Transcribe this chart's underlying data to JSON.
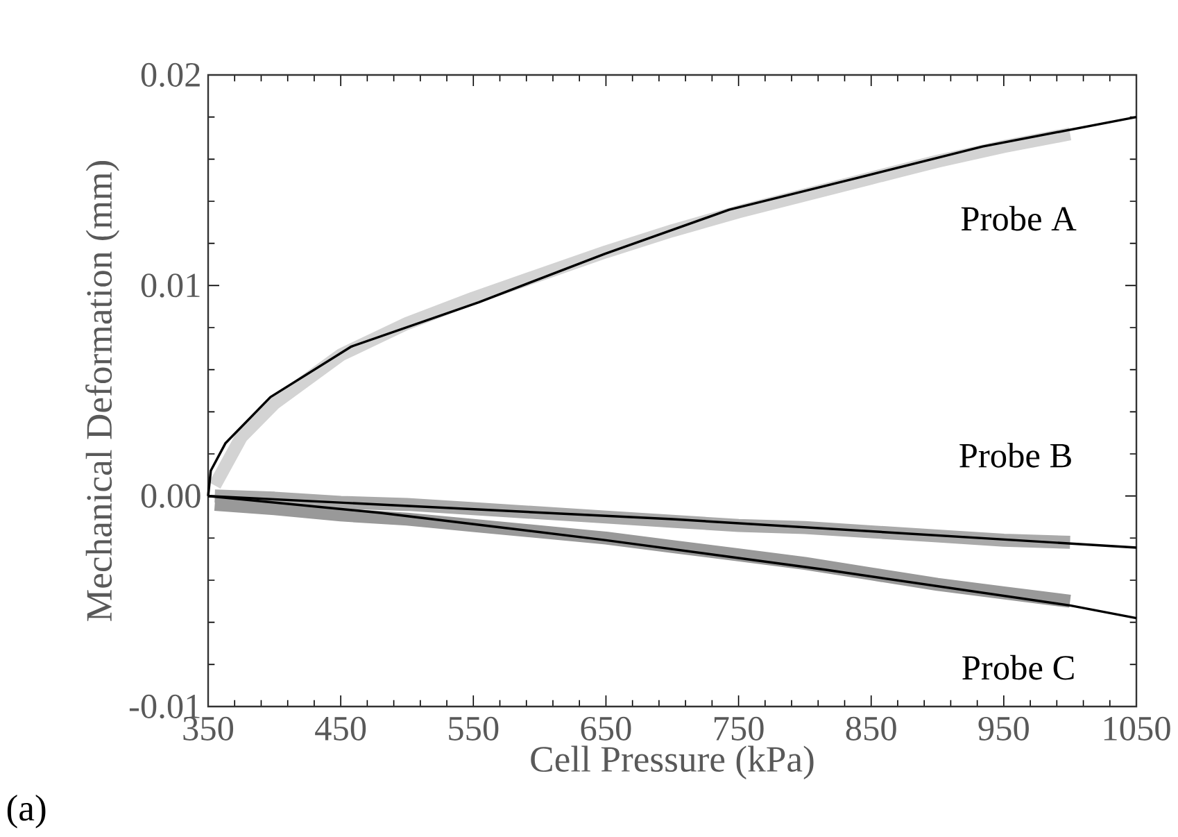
{
  "chart_data": {
    "type": "line",
    "xlabel": "Cell Pressure (kPa)",
    "ylabel": "Mechanical Deformation (mm)",
    "xlim": [
      350,
      1050
    ],
    "ylim": [
      -0.01,
      0.02
    ],
    "xticks": [
      350,
      450,
      550,
      650,
      750,
      850,
      950,
      1050
    ],
    "yticks": [
      -0.01,
      {
        "value": 0,
        "label": "0.00"
      },
      0.01,
      0.02
    ],
    "marker": "none",
    "series": [
      {
        "color": "#d3d3d3",
        "x": [
          355,
          375,
          400,
          450,
          500,
          550,
          600,
          650,
          700,
          750,
          800,
          850,
          900,
          950,
          1000
        ],
        "values": [
          0.0005,
          0.0028,
          0.0044,
          0.0067,
          0.0082,
          0.0094,
          0.0105,
          0.0116,
          0.0126,
          0.0135,
          0.0143,
          0.0151,
          0.0159,
          0.0166,
          0.0172
        ]
      },
      {
        "color": "#aaaaaa",
        "x": [
          355,
          400,
          450,
          500,
          550,
          600,
          650,
          700,
          750,
          800,
          850,
          900,
          950,
          1000
        ],
        "values": [
          0,
          -0.0001,
          -0.0003,
          -0.0004,
          -0.0006,
          -0.0008,
          -0.001,
          -0.0012,
          -0.0014,
          -0.0015,
          -0.0017,
          -0.0019,
          -0.0021,
          -0.0022
        ]
      },
      {
        "color": "#999999",
        "x": [
          355,
          400,
          450,
          500,
          550,
          600,
          650,
          700,
          750,
          800,
          850,
          900,
          950,
          1000
        ],
        "values": [
          -0.0004,
          -0.0006,
          -0.0009,
          -0.0011,
          -0.0014,
          -0.0017,
          -0.002,
          -0.0024,
          -0.0028,
          -0.0032,
          -0.0037,
          -0.0042,
          -0.0046,
          -0.005
        ]
      },
      {
        "color": "#000000",
        "x": [
          350,
          352,
          363,
          397,
          458,
          554,
          649,
          743,
          839,
          934,
          1050
        ],
        "values": [
          0,
          0.0012,
          0.0025,
          0.0047,
          0.0071,
          0.0092,
          0.0115,
          0.0136,
          0.0151,
          0.0166,
          0.018
        ]
      },
      {
        "color": "#000000",
        "x": [
          350,
          700,
          1050
        ],
        "values": [
          0,
          -0.0011,
          -0.00245
        ]
      },
      {
        "color": "#000000",
        "x": [
          350,
          480,
          650,
          815,
          1000,
          1050
        ],
        "values": [
          0,
          -0.0008,
          -0.0021,
          -0.0035,
          -0.0052,
          -0.0058
        ]
      }
    ],
    "annotations": [
      "Probe A",
      "Probe B",
      "Probe C",
      "(a)"
    ]
  }
}
